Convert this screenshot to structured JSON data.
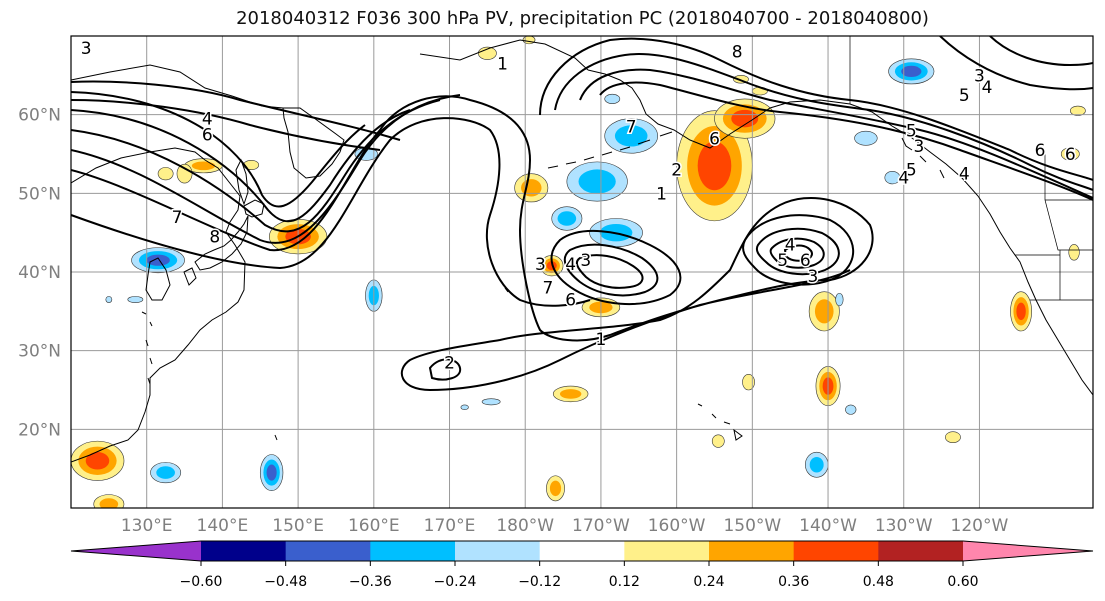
{
  "title": "2018040312 F036 300 hPa PV, precipitation PC (2018040700 - 2018040800)",
  "map": {
    "lon_range": [
      120,
      255
    ],
    "lat_range": [
      10,
      70
    ],
    "lat_labels": [
      {
        "lat": 60,
        "label": "60°N"
      },
      {
        "lat": 50,
        "label": "50°N"
      },
      {
        "lat": 40,
        "label": "40°N"
      },
      {
        "lat": 30,
        "label": "30°N"
      },
      {
        "lat": 20,
        "label": "20°N"
      }
    ],
    "lon_labels": [
      {
        "lon": 130,
        "label": "130°E"
      },
      {
        "lon": 140,
        "label": "140°E"
      },
      {
        "lon": 150,
        "label": "150°E"
      },
      {
        "lon": 160,
        "label": "160°E"
      },
      {
        "lon": 170,
        "label": "170°E"
      },
      {
        "lon": 180,
        "label": "180°W"
      },
      {
        "lon": 190,
        "label": "170°W"
      },
      {
        "lon": 200,
        "label": "160°W"
      },
      {
        "lon": 210,
        "label": "150°W"
      },
      {
        "lon": 220,
        "label": "140°W"
      },
      {
        "lon": 230,
        "label": "130°W"
      },
      {
        "lon": 240,
        "label": "120°W"
      }
    ],
    "grid_lats": [
      20,
      30,
      40,
      50,
      60
    ],
    "grid_lons": [
      130,
      140,
      150,
      160,
      170,
      180,
      190,
      200,
      210,
      220,
      230,
      240
    ],
    "contour_labels": [
      {
        "lon": 190,
        "lat": 31.5,
        "label": "1"
      },
      {
        "lon": 170,
        "lat": 28.5,
        "label": "2"
      },
      {
        "lon": 182,
        "lat": 41,
        "label": "3"
      },
      {
        "lon": 186,
        "lat": 41,
        "label": "4"
      },
      {
        "lon": 188,
        "lat": 41.5,
        "label": "3"
      },
      {
        "lon": 183,
        "lat": 38,
        "label": "7"
      },
      {
        "lon": 186,
        "lat": 36.5,
        "label": "6"
      },
      {
        "lon": 215,
        "lat": 43.5,
        "label": "4"
      },
      {
        "lon": 214,
        "lat": 41.5,
        "label": "5"
      },
      {
        "lon": 217,
        "lat": 41.5,
        "label": "6"
      },
      {
        "lon": 218,
        "lat": 39.5,
        "label": "3"
      },
      {
        "lon": 138,
        "lat": 59.5,
        "label": "4"
      },
      {
        "lon": 138,
        "lat": 57.5,
        "label": "6"
      },
      {
        "lon": 134,
        "lat": 47,
        "label": "7"
      },
      {
        "lon": 139,
        "lat": 44.5,
        "label": "8"
      },
      {
        "lon": 122,
        "lat": 68.5,
        "label": "3"
      },
      {
        "lon": 177,
        "lat": 66.5,
        "label": "1"
      },
      {
        "lon": 194,
        "lat": 58.5,
        "label": "7"
      },
      {
        "lon": 200,
        "lat": 53,
        "label": "2"
      },
      {
        "lon": 198,
        "lat": 50,
        "label": "1"
      },
      {
        "lon": 205,
        "lat": 57,
        "label": "6"
      },
      {
        "lon": 208,
        "lat": 68,
        "label": "8"
      },
      {
        "lon": 240,
        "lat": 65,
        "label": "3"
      },
      {
        "lon": 238,
        "lat": 62.5,
        "label": "5"
      },
      {
        "lon": 241,
        "lat": 63.5,
        "label": "4"
      },
      {
        "lon": 231,
        "lat": 58,
        "label": "5"
      },
      {
        "lon": 232,
        "lat": 56,
        "label": "3"
      },
      {
        "lon": 238,
        "lat": 52.5,
        "label": "4"
      },
      {
        "lon": 248,
        "lat": 55.5,
        "label": "6"
      },
      {
        "lon": 252,
        "lat": 55,
        "label": "6"
      },
      {
        "lon": 231,
        "lat": 53,
        "label": "5"
      },
      {
        "lon": 230,
        "lat": 52,
        "label": "4"
      }
    ]
  },
  "colorbar": {
    "colors": [
      "#9932cc",
      "#00008b",
      "#3a5fcd",
      "#00bfff",
      "#b0e2ff",
      "#ffffff",
      "#fff08a",
      "#ffa500",
      "#ff4500",
      "#b22222",
      "#ff86ad"
    ],
    "tick_labels": [
      "−0.60",
      "−0.48",
      "−0.36",
      "−0.24",
      "−0.12",
      "0.12",
      "0.24",
      "0.36",
      "0.48",
      "0.60"
    ]
  },
  "precip_blobs": [
    {
      "lon": 150,
      "lat": 44.5,
      "rx": 3.8,
      "ry": 2.2,
      "value": 0.44
    },
    {
      "lon": 137.5,
      "lat": 53.5,
      "rx": 2.5,
      "ry": 0.9,
      "value": 0.32
    },
    {
      "lon": 135,
      "lat": 52.5,
      "rx": 1,
      "ry": 1.2,
      "value": 0.2
    },
    {
      "lon": 205,
      "lat": 53.5,
      "rx": 5,
      "ry": 7,
      "value": 0.42
    },
    {
      "lon": 209,
      "lat": 59.5,
      "rx": 4,
      "ry": 2.5,
      "value": 0.38
    },
    {
      "lon": 180.8,
      "lat": 50.7,
      "rx": 2.2,
      "ry": 1.8,
      "value": 0.24
    },
    {
      "lon": 183.5,
      "lat": 40.8,
      "rx": 1.5,
      "ry": 1.3,
      "value": 0.4
    },
    {
      "lon": 190,
      "lat": 35.5,
      "rx": 2.5,
      "ry": 1.2,
      "value": 0.26
    },
    {
      "lon": 219.5,
      "lat": 35,
      "rx": 2,
      "ry": 2.5,
      "value": 0.28
    },
    {
      "lon": 220,
      "lat": 25.5,
      "rx": 1.6,
      "ry": 2.5,
      "value": 0.38
    },
    {
      "lon": 245.5,
      "lat": 35,
      "rx": 1.4,
      "ry": 2.5,
      "value": 0.42
    },
    {
      "lon": 123.5,
      "lat": 16,
      "rx": 3.5,
      "ry": 2.5,
      "value": 0.44
    },
    {
      "lon": 125,
      "lat": 10.5,
      "rx": 2,
      "ry": 1.2,
      "value": 0.3
    },
    {
      "lon": 184,
      "lat": 12.5,
      "rx": 1.2,
      "ry": 1.6,
      "value": 0.3
    },
    {
      "lon": 186,
      "lat": 24.5,
      "rx": 2.3,
      "ry": 1,
      "value": 0.24
    },
    {
      "lon": 209.5,
      "lat": 26,
      "rx": 0.8,
      "ry": 1,
      "value": 0.22
    },
    {
      "lon": 205.5,
      "lat": 18.5,
      "rx": 0.8,
      "ry": 0.8,
      "value": 0.22
    },
    {
      "lon": 236.5,
      "lat": 19,
      "rx": 1,
      "ry": 0.7,
      "value": 0.22
    },
    {
      "lon": 252.5,
      "lat": 42.5,
      "rx": 0.7,
      "ry": 1,
      "value": 0.22
    },
    {
      "lon": 208.5,
      "lat": 64.5,
      "rx": 1,
      "ry": 0.5,
      "value": 0.18
    },
    {
      "lon": 132.5,
      "lat": 52.5,
      "rx": 1,
      "ry": 0.8,
      "value": 0.2
    },
    {
      "lon": 253,
      "lat": 60.5,
      "rx": 1,
      "ry": 0.6,
      "value": 0.18
    },
    {
      "lon": 252,
      "lat": 55,
      "rx": 1.2,
      "ry": 0.8,
      "value": 0.2
    },
    {
      "lon": 175,
      "lat": 67.8,
      "rx": 1.2,
      "ry": 0.8,
      "value": 0.16
    },
    {
      "lon": 180.5,
      "lat": 69.5,
      "rx": 0.8,
      "ry": 0.5,
      "value": 0.16
    },
    {
      "lon": 143.8,
      "lat": 53.6,
      "rx": 1,
      "ry": 0.6,
      "value": 0.18
    },
    {
      "lon": 192.5,
      "lat": 58,
      "rx": 1,
      "ry": 0.5,
      "value": 0.16
    },
    {
      "lon": 211,
      "lat": 63,
      "rx": 1,
      "ry": 0.5,
      "value": 0.16
    },
    {
      "lon": 189.5,
      "lat": 51.5,
      "rx": 4,
      "ry": 2.5,
      "value": -0.36
    },
    {
      "lon": 192,
      "lat": 45,
      "rx": 3.5,
      "ry": 1.8,
      "value": -0.3
    },
    {
      "lon": 185.5,
      "lat": 46.8,
      "rx": 2,
      "ry": 1.5,
      "value": -0.34
    },
    {
      "lon": 194,
      "lat": 57.3,
      "rx": 3.5,
      "ry": 2.2,
      "value": -0.32
    },
    {
      "lon": 231,
      "lat": 65.5,
      "rx": 3,
      "ry": 1.6,
      "value": -0.44
    },
    {
      "lon": 131.5,
      "lat": 41.5,
      "rx": 3.5,
      "ry": 1.6,
      "value": -0.4
    },
    {
      "lon": 159,
      "lat": 55,
      "rx": 1.5,
      "ry": 0.8,
      "value": -0.22
    },
    {
      "lon": 160,
      "lat": 37,
      "rx": 1.1,
      "ry": 2,
      "value": -0.26
    },
    {
      "lon": 146.5,
      "lat": 14.5,
      "rx": 1.5,
      "ry": 2.3,
      "value": -0.38
    },
    {
      "lon": 132.5,
      "lat": 14.5,
      "rx": 2,
      "ry": 1.3,
      "value": -0.3
    },
    {
      "lon": 218.5,
      "lat": 15.5,
      "rx": 1.5,
      "ry": 1.6,
      "value": -0.3
    },
    {
      "lon": 228.5,
      "lat": 52,
      "rx": 1,
      "ry": 0.8,
      "value": -0.22
    },
    {
      "lon": 221.5,
      "lat": 36.5,
      "rx": 0.5,
      "ry": 0.8,
      "value": -0.2
    },
    {
      "lon": 223,
      "lat": 22.5,
      "rx": 0.7,
      "ry": 0.6,
      "value": -0.2
    },
    {
      "lon": 225,
      "lat": 57,
      "rx": 1.5,
      "ry": 0.9,
      "value": -0.22
    },
    {
      "lon": 128.5,
      "lat": 36.5,
      "rx": 1,
      "ry": 0.4,
      "value": -0.2
    },
    {
      "lon": 175.5,
      "lat": 23.5,
      "rx": 1.2,
      "ry": 0.4,
      "value": -0.18
    },
    {
      "lon": 172,
      "lat": 22.8,
      "rx": 0.5,
      "ry": 0.3,
      "value": -0.16
    },
    {
      "lon": 125,
      "lat": 36.5,
      "rx": 0.4,
      "ry": 0.4,
      "value": -0.16
    },
    {
      "lon": 191.5,
      "lat": 62,
      "rx": 1,
      "ry": 0.6,
      "value": -0.2
    }
  ]
}
